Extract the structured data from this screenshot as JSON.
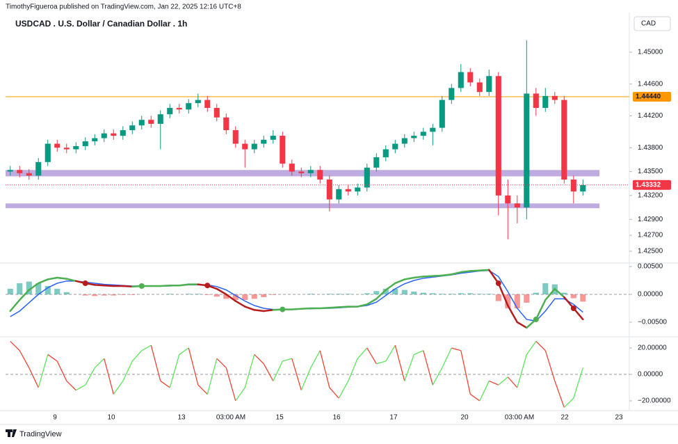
{
  "byline": "TimothyFigueroa published on TradingView.com, Jan 22, 2025 12:16 UTC+8",
  "currency": "CAD",
  "brand": "TradingView",
  "chart_data": [
    {
      "type": "candlestick",
      "title": "USDCAD . U.S. Dollar / Canadian Dollar . 1h",
      "xlim": [
        0,
        66.44
      ],
      "ylim": [
        1.42351,
        1.45498
      ],
      "yticks": [
        {
          "value": 1.45,
          "label": "1.45000"
        },
        {
          "value": 1.446,
          "label": "1.44600"
        },
        {
          "value": 1.442,
          "label": "1.44200"
        },
        {
          "value": 1.438,
          "label": "1.43800"
        },
        {
          "value": 1.435,
          "label": "1.43500"
        },
        {
          "value": 1.432,
          "label": "1.43200"
        },
        {
          "value": 1.429,
          "label": "1.42900"
        },
        {
          "value": 1.427,
          "label": "1.42700"
        },
        {
          "value": 1.425,
          "label": "1.42500"
        }
      ],
      "up_color": "#089981",
      "down_color": "#f23645",
      "open": [
        1.435,
        1.4352,
        1.4348,
        1.4345,
        1.4362,
        1.4385,
        1.438,
        1.4378,
        1.4382,
        1.4388,
        1.4392,
        1.4398,
        1.4395,
        1.4402,
        1.4408,
        1.4415,
        1.441,
        1.4422,
        1.443,
        1.4428,
        1.4436,
        1.444,
        1.443,
        1.4418,
        1.4402,
        1.4385,
        1.4378,
        1.4385,
        1.439,
        1.4395,
        1.436,
        1.435,
        1.4348,
        1.4352,
        1.434,
        1.4315,
        1.4328,
        1.4325,
        1.433,
        1.4355,
        1.4368,
        1.4378,
        1.4385,
        1.4392,
        1.4395,
        1.44,
        1.4405,
        1.444,
        1.4455,
        1.4475,
        1.4462,
        1.445,
        1.447,
        1.432,
        1.431,
        1.4305,
        1.4448,
        1.443,
        1.4445,
        1.444,
        1.434,
        1.4325
      ],
      "high": [
        1.4357,
        1.4357,
        1.4353,
        1.4367,
        1.439,
        1.439,
        1.4385,
        1.4387,
        1.4393,
        1.4397,
        1.4403,
        1.4403,
        1.4407,
        1.4413,
        1.442,
        1.442,
        1.4427,
        1.4435,
        1.4435,
        1.4441,
        1.4448,
        1.4445,
        1.4435,
        1.4423,
        1.4407,
        1.439,
        1.439,
        1.4395,
        1.4402,
        1.44,
        1.4365,
        1.4355,
        1.4357,
        1.4357,
        1.4345,
        1.4333,
        1.4333,
        1.4335,
        1.436,
        1.4373,
        1.4383,
        1.439,
        1.4397,
        1.44,
        1.4405,
        1.441,
        1.4445,
        1.446,
        1.4485,
        1.448,
        1.4467,
        1.4478,
        1.4475,
        1.434,
        1.432,
        1.4515,
        1.4455,
        1.4455,
        1.445,
        1.4445,
        1.4345,
        1.434
      ],
      "low": [
        1.4345,
        1.4343,
        1.434,
        1.434,
        1.4357,
        1.4375,
        1.4373,
        1.4373,
        1.4377,
        1.4383,
        1.4387,
        1.439,
        1.439,
        1.4397,
        1.4403,
        1.4405,
        1.4378,
        1.4417,
        1.4423,
        1.4423,
        1.4431,
        1.4425,
        1.4413,
        1.4397,
        1.438,
        1.4355,
        1.4373,
        1.438,
        1.4385,
        1.4355,
        1.4345,
        1.4343,
        1.4343,
        1.4335,
        1.43,
        1.431,
        1.432,
        1.432,
        1.4325,
        1.435,
        1.4363,
        1.4373,
        1.438,
        1.4387,
        1.439,
        1.4383,
        1.44,
        1.4435,
        1.445,
        1.4457,
        1.4445,
        1.4445,
        1.4295,
        1.4265,
        1.4285,
        1.429,
        1.442,
        1.4425,
        1.4435,
        1.4335,
        1.431,
        1.432
      ],
      "close": [
        1.4352,
        1.4348,
        1.4345,
        1.4362,
        1.4385,
        1.438,
        1.4378,
        1.4382,
        1.4388,
        1.4392,
        1.4398,
        1.4395,
        1.4402,
        1.4408,
        1.4415,
        1.441,
        1.4422,
        1.443,
        1.4428,
        1.4436,
        1.444,
        1.443,
        1.4418,
        1.4402,
        1.4385,
        1.4378,
        1.4385,
        1.439,
        1.4395,
        1.436,
        1.435,
        1.4348,
        1.4352,
        1.434,
        1.4315,
        1.4328,
        1.4325,
        1.433,
        1.4355,
        1.4368,
        1.4378,
        1.4385,
        1.4392,
        1.4395,
        1.44,
        1.4405,
        1.444,
        1.4455,
        1.4475,
        1.4462,
        1.445,
        1.447,
        1.432,
        1.431,
        1.4305,
        1.4448,
        1.443,
        1.4445,
        1.444,
        1.434,
        1.4325,
        1.4333
      ],
      "zones": [
        {
          "from": 1.4344,
          "to": 1.4352,
          "color": "#b39ddb"
        },
        {
          "from": 1.4304,
          "to": 1.431,
          "color": "#b39ddb"
        }
      ],
      "levels": [
        {
          "value": 1.4444,
          "label": "1.44440",
          "color": "#ff9800"
        }
      ],
      "last_price": {
        "value": 1.43332,
        "label": "1.43332",
        "color": "#f23645"
      }
    },
    {
      "type": "macd",
      "xlim": [
        0,
        66.44
      ],
      "ylim": [
        -0.00763,
        0.00563
      ],
      "yticks": [
        {
          "value": 0.005,
          "label": "0.00500"
        },
        {
          "value": 0,
          "label": "0.00000"
        },
        {
          "value": -0.005,
          "label": "−0.00500"
        }
      ],
      "zero_line": true,
      "series": [
        {
          "style": "histogram",
          "color": "#26a69a",
          "negative_color": "#ef5350",
          "values": [
            0.001,
            0.002,
            0.0023,
            0.002,
            0.0015,
            0.001,
            0.0004,
            0.0,
            -0.0002,
            -0.0003,
            -0.0002,
            -0.0002,
            -0.0001,
            -0.0001,
            0,
            0,
            0,
            0.0001,
            0,
            0.0001,
            0.0001,
            -0.0001,
            -0.0004,
            -0.0008,
            -0.001,
            -0.001,
            -0.0008,
            -0.0005,
            -0.0001,
            0,
            0,
            0,
            0.0001,
            0,
            0.0001,
            0.0001,
            0.0001,
            0,
            0.0002,
            0.0006,
            0.001,
            0.001,
            0.0008,
            0.0005,
            0.0003,
            0.0002,
            0.0001,
            0.0001,
            0.0002,
            0.0002,
            0.0001,
            0.0001,
            -0.0012,
            -0.0025,
            -0.0025,
            -0.0015,
            0.0003,
            0.002,
            0.0018,
            0.0003,
            -0.0007,
            -0.0013
          ]
        },
        {
          "style": "line",
          "color": "#2962ff",
          "values": [
            -0.004,
            -0.003,
            -0.0015,
            0.0,
            0.0012,
            0.002,
            0.0024,
            0.0024,
            0.0022,
            0.002,
            0.0018,
            0.0017,
            0.0016,
            0.0015,
            0.0015,
            0.0015,
            0.0015,
            0.0015,
            0.0016,
            0.0017,
            0.0017,
            0.0017,
            0.0014,
            0.0008,
            -0.0002,
            -0.0012,
            -0.002,
            -0.0025,
            -0.0027,
            -0.0027,
            -0.0027,
            -0.0026,
            -0.0026,
            -0.0025,
            -0.0025,
            -0.0024,
            -0.0023,
            -0.0022,
            -0.002,
            -0.0014,
            -0.0002,
            0.001,
            0.0019,
            0.0025,
            0.0029,
            0.0031,
            0.0033,
            0.0035,
            0.0038,
            0.004,
            0.0042,
            0.0043,
            0.0032,
            0.0005,
            -0.0025,
            -0.0045,
            -0.0048,
            -0.003,
            -0.0008,
            -0.0008,
            -0.0018,
            -0.0032
          ]
        },
        {
          "style": "macd",
          "color": "#4caf50",
          "below_color": "#b71c1c",
          "values": [
            -0.003,
            -0.001,
            0.0008,
            0.002,
            0.0027,
            0.003,
            0.0028,
            0.0024,
            0.002,
            0.0017,
            0.0016,
            0.0015,
            0.0015,
            0.0014,
            0.0015,
            0.0015,
            0.0015,
            0.0016,
            0.0016,
            0.0018,
            0.0018,
            0.0016,
            0.001,
            0.0,
            -0.0012,
            -0.0022,
            -0.0028,
            -0.003,
            -0.0028,
            -0.0027,
            -0.0027,
            -0.0026,
            -0.0025,
            -0.0025,
            -0.0024,
            -0.0023,
            -0.0022,
            -0.0022,
            -0.0018,
            -0.0008,
            0.0008,
            0.002,
            0.0027,
            0.003,
            0.0032,
            0.0033,
            0.0034,
            0.0036,
            0.004,
            0.0042,
            0.0043,
            0.0044,
            0.002,
            -0.002,
            -0.005,
            -0.006,
            -0.0045,
            -0.001,
            0.001,
            -0.0005,
            -0.0025,
            -0.0045
          ]
        }
      ]
    },
    {
      "type": "oscillator",
      "xlim": [
        0,
        66.44
      ],
      "ylim": [
        -27.4,
        28.4
      ],
      "yticks": [
        {
          "value": 20,
          "label": "20.00000"
        },
        {
          "value": 0,
          "label": "0.00000"
        },
        {
          "value": -20,
          "label": "−20.00000"
        }
      ],
      "zero_line": true,
      "xticks": [
        {
          "value": 5.26,
          "label": "9"
        },
        {
          "value": 11.26,
          "label": "10"
        },
        {
          "value": 18.74,
          "label": "13"
        },
        {
          "value": 24.0,
          "label": "03:00 AM"
        },
        {
          "value": 29.19,
          "label": "15"
        },
        {
          "value": 35.26,
          "label": "16"
        },
        {
          "value": 41.33,
          "label": "17"
        },
        {
          "value": 48.89,
          "label": "20"
        },
        {
          "value": 54.74,
          "label": "03:00 AM"
        },
        {
          "value": 59.56,
          "label": "22"
        },
        {
          "value": 65.33,
          "label": "23"
        }
      ],
      "series": [
        {
          "rising_color": "#5ce65c",
          "falling_color": "#f44336",
          "values": [
            25,
            18,
            5,
            -10,
            15,
            10,
            -5,
            -12,
            -8,
            5,
            12,
            -15,
            -5,
            10,
            18,
            22,
            -5,
            -10,
            15,
            20,
            -8,
            -15,
            12,
            5,
            -20,
            -10,
            15,
            8,
            -5,
            10,
            12,
            -12,
            5,
            18,
            -10,
            -18,
            -5,
            12,
            20,
            8,
            10,
            22,
            -5,
            15,
            18,
            -8,
            5,
            20,
            18,
            -15,
            -20,
            -5,
            -8,
            -2,
            -10,
            15,
            25,
            18,
            -5,
            -25,
            -18,
            5
          ]
        }
      ]
    }
  ]
}
